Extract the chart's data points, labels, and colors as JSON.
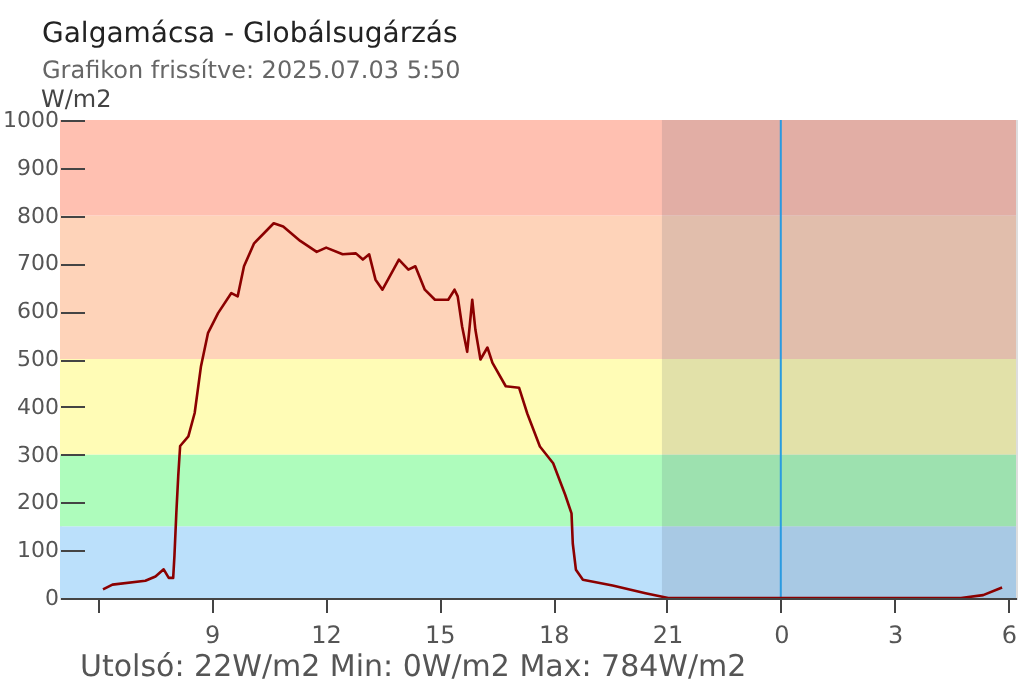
{
  "chart_data": {
    "type": "line",
    "title": "Galgamácsa - Globálsugárzás",
    "subtitle": "Grafikon frissítve: 2025.07.03 5:50",
    "ylabel": "W/m2",
    "annotations": [
      "Utolsó: 22W/m2  Min: 0W/m2  Max: 784W/m2"
    ],
    "x": [
      "2025-07-02T06:08",
      "2025-07-02T06:23",
      "2025-07-02T07:15",
      "2025-07-02T07:31",
      "2025-07-02T07:44",
      "2025-07-02T07:52",
      "2025-07-02T07:59",
      "2025-07-02T08:01",
      "2025-07-02T08:04",
      "2025-07-02T08:07",
      "2025-07-02T08:10",
      "2025-07-02T08:23",
      "2025-07-02T08:33",
      "2025-07-02T08:43",
      "2025-07-02T08:54",
      "2025-07-02T09:10",
      "2025-07-02T09:31",
      "2025-07-02T09:41",
      "2025-07-02T09:51",
      "2025-07-02T10:07",
      "2025-07-02T10:38",
      "2025-07-02T10:53",
      "2025-07-02T11:20",
      "2025-07-02T11:46",
      "2025-07-02T12:01",
      "2025-07-02T12:27",
      "2025-07-02T12:48",
      "2025-07-02T12:59",
      "2025-07-02T13:09",
      "2025-07-02T13:19",
      "2025-07-02T13:30",
      "2025-07-02T13:40",
      "2025-07-02T13:56",
      "2025-07-02T14:11",
      "2025-07-02T14:22",
      "2025-07-02T14:37",
      "2025-07-02T14:53",
      "2025-07-02T15:14",
      "2025-07-02T15:24",
      "2025-07-02T15:29",
      "2025-07-02T15:36",
      "2025-07-02T15:44",
      "2025-07-02T15:52",
      "2025-07-02T15:57",
      "2025-07-02T16:05",
      "2025-07-02T16:16",
      "2025-07-02T16:24",
      "2025-07-02T16:45",
      "2025-07-02T17:06",
      "2025-07-02T17:19",
      "2025-07-02T17:39",
      "2025-07-02T18:00",
      "2025-07-02T18:19",
      "2025-07-02T18:29",
      "2025-07-02T18:31",
      "2025-07-02T18:36",
      "2025-07-02T18:47",
      "2025-07-02T19:34",
      "2025-07-02T20:26",
      "2025-07-02T21:02",
      "2025-07-03T04:45",
      "2025-07-03T05:20",
      "2025-07-03T05:50"
    ],
    "series": [
      {
        "color": "#8b0000",
        "values": [
          18,
          28,
          36,
          45,
          60,
          42,
          42,
          88,
          178,
          255,
          318,
          338,
          387,
          485,
          554,
          596,
          638,
          631,
          694,
          742,
          784,
          777,
          747,
          724,
          733,
          719,
          721,
          708,
          719,
          666,
          645,
          669,
          708,
          687,
          694,
          645,
          624,
          624,
          645,
          631,
          568,
          515,
          624,
          561,
          499,
          524,
          492,
          443,
          440,
          386,
          317,
          282,
          216,
          177,
          114,
          59,
          38,
          26,
          10,
          0,
          0,
          6,
          22
        ]
      }
    ],
    "xlim": [
      "2025-07-02T05:00",
      "2025-07-03T06:12"
    ],
    "ylim": [
      0,
      1000
    ],
    "xticks": [
      {
        "value": "2025-07-02T06:00",
        "label": null
      },
      {
        "value": "2025-07-02T09:00",
        "label": "9"
      },
      {
        "value": "2025-07-02T12:00",
        "label": "12"
      },
      {
        "value": "2025-07-02T15:00",
        "label": "15"
      },
      {
        "value": "2025-07-02T18:00",
        "label": "18"
      },
      {
        "value": "2025-07-02T21:00",
        "label": "21"
      },
      {
        "value": "2025-07-03T00:00",
        "label": "0"
      },
      {
        "value": "2025-07-03T03:00",
        "label": "3"
      },
      {
        "value": "2025-07-03T06:00",
        "label": "6"
      }
    ],
    "yticks": [
      0,
      100,
      200,
      300,
      400,
      500,
      600,
      700,
      800,
      900,
      1000
    ],
    "bands": [
      {
        "axis": "y",
        "from": 0,
        "to": 150,
        "color": "#bbe0fb"
      },
      {
        "axis": "y",
        "from": 150,
        "to": 300,
        "color": "#aefcbc"
      },
      {
        "axis": "y",
        "from": 300,
        "to": 500,
        "color": "#fffcb6"
      },
      {
        "axis": "y",
        "from": 500,
        "to": 800,
        "color": "#fed3b9"
      },
      {
        "axis": "y",
        "from": 800,
        "to": 1000,
        "color": "#ffc0b1"
      },
      {
        "axis": "x",
        "from": "2025-07-02T20:52",
        "to": "2025-07-03T06:12",
        "color": "#3a4a66"
      }
    ],
    "ref_lines": [
      {
        "axis": "x",
        "value": "2025-07-03T00:00",
        "color": "#2a9be0"
      }
    ],
    "grid": false
  }
}
